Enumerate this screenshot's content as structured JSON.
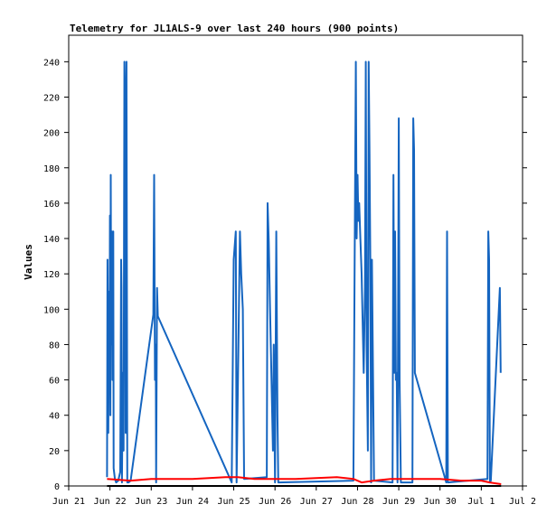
{
  "chart_data": {
    "type": "line",
    "title": "Telemetry for JL1ALS-9 over last 240 hours (900 points)",
    "xlabel": "",
    "ylabel": "Values",
    "ylim": [
      0,
      255
    ],
    "xlim": [
      0,
      11
    ],
    "x_tick_labels": [
      "Jun 21",
      "Jun 22",
      "Jun 23",
      "Jun 24",
      "Jun 25",
      "Jun 26",
      "Jun 27",
      "Jun 28",
      "Jun 29",
      "Jun 30",
      "Jul 1",
      "Jul 2"
    ],
    "y_ticks": [
      0,
      20,
      40,
      60,
      80,
      100,
      120,
      140,
      160,
      180,
      200,
      220,
      240
    ],
    "grid": false,
    "colors": {
      "blue_series": "#1565c0",
      "red_series": "#ff0000",
      "black_series": "#000000"
    },
    "series": [
      {
        "color": "blue",
        "points": [
          [
            0.93,
            5
          ],
          [
            0.94,
            128
          ],
          [
            0.96,
            30
          ],
          [
            0.98,
            110
          ],
          [
            0.99,
            67
          ],
          [
            1.0,
            153
          ],
          [
            1.01,
            40
          ],
          [
            1.02,
            176
          ],
          [
            1.03,
            80
          ],
          [
            1.05,
            144
          ],
          [
            1.06,
            60
          ],
          [
            1.08,
            144
          ],
          [
            1.09,
            10
          ],
          [
            1.12,
            4
          ],
          [
            1.15,
            2
          ],
          [
            1.2,
            3
          ],
          [
            1.25,
            8
          ],
          [
            1.27,
            128
          ],
          [
            1.28,
            112
          ],
          [
            1.29,
            2
          ],
          [
            1.31,
            64
          ],
          [
            1.33,
            20
          ],
          [
            1.35,
            240
          ],
          [
            1.37,
            208
          ],
          [
            1.38,
            30
          ],
          [
            1.4,
            240
          ],
          [
            1.42,
            2
          ],
          [
            1.45,
            2
          ],
          [
            1.5,
            3
          ],
          [
            2.05,
            97
          ],
          [
            2.07,
            176
          ],
          [
            2.09,
            60
          ],
          [
            2.11,
            80
          ],
          [
            2.12,
            2
          ],
          [
            2.14,
            112
          ],
          [
            2.16,
            96
          ],
          [
            3.95,
            2
          ],
          [
            4.0,
            128
          ],
          [
            4.05,
            144
          ],
          [
            4.07,
            2
          ],
          [
            4.15,
            144
          ],
          [
            4.18,
            120
          ],
          [
            4.22,
            100
          ],
          [
            4.25,
            4
          ],
          [
            4.8,
            5
          ],
          [
            4.82,
            160
          ],
          [
            4.85,
            138
          ],
          [
            4.88,
            100
          ],
          [
            4.95,
            20
          ],
          [
            4.97,
            80
          ],
          [
            5.0,
            2
          ],
          [
            5.03,
            144
          ],
          [
            5.06,
            40
          ],
          [
            5.08,
            2
          ],
          [
            6.9,
            3
          ],
          [
            6.93,
            128
          ],
          [
            6.96,
            240
          ],
          [
            6.98,
            140
          ],
          [
            7.0,
            176
          ],
          [
            7.02,
            150
          ],
          [
            7.04,
            160
          ],
          [
            7.07,
            140
          ],
          [
            7.1,
            120
          ],
          [
            7.15,
            64
          ],
          [
            7.18,
            112
          ],
          [
            7.2,
            240
          ],
          [
            7.22,
            80
          ],
          [
            7.25,
            20
          ],
          [
            7.27,
            240
          ],
          [
            7.29,
            190
          ],
          [
            7.31,
            128
          ],
          [
            7.33,
            2
          ],
          [
            7.35,
            128
          ],
          [
            7.4,
            3
          ],
          [
            7.85,
            2
          ],
          [
            7.87,
            176
          ],
          [
            7.89,
            64
          ],
          [
            7.91,
            144
          ],
          [
            7.93,
            60
          ],
          [
            7.95,
            64
          ],
          [
            7.97,
            2
          ],
          [
            8.0,
            208
          ],
          [
            8.02,
            60
          ],
          [
            8.05,
            2
          ],
          [
            8.33,
            2
          ],
          [
            8.35,
            208
          ],
          [
            8.37,
            190
          ],
          [
            8.39,
            64
          ],
          [
            9.15,
            2
          ],
          [
            9.17,
            144
          ],
          [
            9.19,
            2
          ],
          [
            10.15,
            4
          ],
          [
            10.17,
            144
          ],
          [
            10.19,
            128
          ],
          [
            10.21,
            2
          ],
          [
            10.23,
            3
          ],
          [
            10.45,
            112
          ],
          [
            10.47,
            64
          ]
        ]
      },
      {
        "color": "red",
        "points": [
          [
            0.93,
            4
          ],
          [
            1.5,
            3
          ],
          [
            2.0,
            4
          ],
          [
            3.0,
            4
          ],
          [
            3.8,
            5
          ],
          [
            4.1,
            5
          ],
          [
            4.5,
            4
          ],
          [
            5.5,
            4
          ],
          [
            6.5,
            5
          ],
          [
            6.9,
            4
          ],
          [
            7.1,
            2
          ],
          [
            7.4,
            3
          ],
          [
            7.8,
            4
          ],
          [
            8.0,
            4
          ],
          [
            8.5,
            4
          ],
          [
            9.0,
            4
          ],
          [
            9.5,
            3
          ],
          [
            10.0,
            3
          ],
          [
            10.2,
            2
          ],
          [
            10.48,
            1
          ]
        ]
      },
      {
        "color": "black",
        "points": [
          [
            0.93,
            0
          ],
          [
            10.48,
            0
          ]
        ]
      }
    ]
  }
}
